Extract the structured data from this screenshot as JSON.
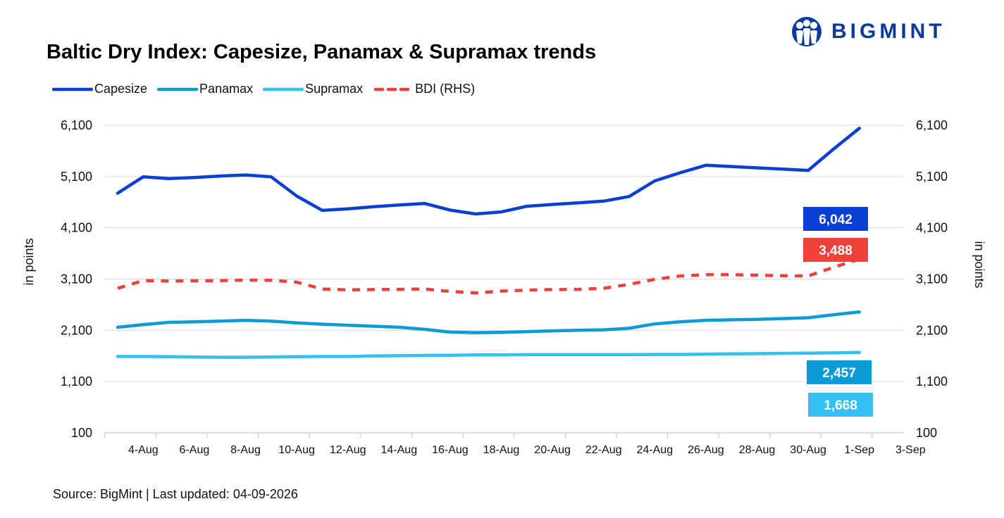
{
  "header": {
    "title": "Baltic Dry Index: Capesize, Panamax & Supramax trends",
    "logo_text": "BIGMINT"
  },
  "footer": {
    "source": "Source: BigMint | Last updated: 04-09-2026"
  },
  "colors": {
    "capesize": "#0a3fd4",
    "panamax": "#0d9bd8",
    "supramax": "#36bff2",
    "bdi": "#f0403a",
    "grid": "#d9d9d9",
    "logo": "#0b3a9c"
  },
  "chart_data": {
    "type": "line",
    "title": "Baltic Dry Index: Capesize, Panamax & Supramax trends",
    "ylabel_left": "in points",
    "ylabel_right": "in points",
    "ylim": [
      100,
      6100
    ],
    "y_ticks": [
      100,
      1100,
      2100,
      3100,
      4100,
      5100,
      6100
    ],
    "y_tick_labels": [
      "100",
      "1,100",
      "2,100",
      "3,100",
      "4,100",
      "5,100",
      "6,100"
    ],
    "x": [
      "3-Aug",
      "4-Aug",
      "5-Aug",
      "6-Aug",
      "7-Aug",
      "8-Aug",
      "9-Aug",
      "10-Aug",
      "11-Aug",
      "12-Aug",
      "13-Aug",
      "14-Aug",
      "15-Aug",
      "16-Aug",
      "17-Aug",
      "18-Aug",
      "19-Aug",
      "20-Aug",
      "21-Aug",
      "22-Aug",
      "23-Aug",
      "24-Aug",
      "25-Aug",
      "26-Aug",
      "27-Aug",
      "28-Aug",
      "29-Aug",
      "30-Aug",
      "31-Aug",
      "1-Sep",
      "2-Sep",
      "3-Sep"
    ],
    "x_tick_labels": [
      "4-Aug",
      "6-Aug",
      "8-Aug",
      "10-Aug",
      "12-Aug",
      "14-Aug",
      "16-Aug",
      "18-Aug",
      "20-Aug",
      "22-Aug",
      "24-Aug",
      "26-Aug",
      "28-Aug",
      "30-Aug",
      "1-Sep",
      "3-Sep"
    ],
    "grid": "horizontal",
    "legend_position": "top-left",
    "series": [
      {
        "name": "Capesize",
        "style": "solid",
        "points": [
          [
            0,
            4775
          ],
          [
            1,
            5095
          ],
          [
            2,
            5060
          ],
          [
            3,
            5080
          ],
          [
            4,
            5110
          ],
          [
            5,
            5130
          ],
          [
            6,
            5095
          ],
          [
            7,
            4720
          ],
          [
            8,
            4440
          ],
          [
            9,
            4470
          ],
          [
            10,
            4510
          ],
          [
            11,
            4545
          ],
          [
            12,
            4575
          ],
          [
            13,
            4445
          ],
          [
            14,
            4370
          ],
          [
            15,
            4410
          ],
          [
            16,
            4520
          ],
          [
            17,
            4555
          ],
          [
            18,
            4585
          ],
          [
            19,
            4620
          ],
          [
            20,
            4710
          ],
          [
            21,
            5015
          ],
          [
            22,
            5175
          ],
          [
            23,
            5320
          ],
          [
            24,
            5295
          ],
          [
            25,
            5270
          ],
          [
            26,
            5245
          ],
          [
            27,
            5220
          ],
          [
            28,
            5640
          ],
          [
            29,
            6042
          ]
        ]
      },
      {
        "name": "Panamax",
        "style": "solid",
        "points": [
          [
            0,
            2160
          ],
          [
            1,
            2210
          ],
          [
            2,
            2255
          ],
          [
            3,
            2265
          ],
          [
            4,
            2280
          ],
          [
            5,
            2295
          ],
          [
            6,
            2280
          ],
          [
            7,
            2245
          ],
          [
            8,
            2220
          ],
          [
            9,
            2200
          ],
          [
            10,
            2180
          ],
          [
            11,
            2160
          ],
          [
            12,
            2120
          ],
          [
            13,
            2065
          ],
          [
            14,
            2055
          ],
          [
            15,
            2060
          ],
          [
            16,
            2075
          ],
          [
            17,
            2090
          ],
          [
            18,
            2100
          ],
          [
            19,
            2110
          ],
          [
            20,
            2140
          ],
          [
            21,
            2225
          ],
          [
            22,
            2265
          ],
          [
            23,
            2295
          ],
          [
            24,
            2305
          ],
          [
            25,
            2315
          ],
          [
            26,
            2330
          ],
          [
            27,
            2345
          ],
          [
            28,
            2405
          ],
          [
            29,
            2457
          ]
        ]
      },
      {
        "name": "Supramax",
        "style": "solid",
        "points": [
          [
            0,
            1590
          ],
          [
            1,
            1590
          ],
          [
            2,
            1585
          ],
          [
            3,
            1580
          ],
          [
            4,
            1575
          ],
          [
            5,
            1575
          ],
          [
            6,
            1580
          ],
          [
            7,
            1585
          ],
          [
            8,
            1590
          ],
          [
            9,
            1590
          ],
          [
            10,
            1600
          ],
          [
            11,
            1605
          ],
          [
            12,
            1610
          ],
          [
            13,
            1615
          ],
          [
            14,
            1620
          ],
          [
            15,
            1620
          ],
          [
            16,
            1625
          ],
          [
            17,
            1625
          ],
          [
            18,
            1625
          ],
          [
            19,
            1625
          ],
          [
            20,
            1625
          ],
          [
            21,
            1630
          ],
          [
            22,
            1630
          ],
          [
            23,
            1635
          ],
          [
            24,
            1640
          ],
          [
            25,
            1645
          ],
          [
            26,
            1650
          ],
          [
            27,
            1655
          ],
          [
            28,
            1660
          ],
          [
            29,
            1668
          ]
        ]
      },
      {
        "name": "BDI (RHS)",
        "style": "dashed",
        "points": [
          [
            0,
            2920
          ],
          [
            1,
            3070
          ],
          [
            2,
            3060
          ],
          [
            3,
            3065
          ],
          [
            4,
            3070
          ],
          [
            5,
            3080
          ],
          [
            6,
            3075
          ],
          [
            7,
            3040
          ],
          [
            8,
            2905
          ],
          [
            9,
            2890
          ],
          [
            10,
            2895
          ],
          [
            11,
            2900
          ],
          [
            12,
            2905
          ],
          [
            13,
            2860
          ],
          [
            14,
            2830
          ],
          [
            15,
            2865
          ],
          [
            16,
            2885
          ],
          [
            17,
            2895
          ],
          [
            18,
            2900
          ],
          [
            19,
            2920
          ],
          [
            20,
            2995
          ],
          [
            21,
            3095
          ],
          [
            22,
            3160
          ],
          [
            23,
            3185
          ],
          [
            24,
            3185
          ],
          [
            25,
            3175
          ],
          [
            26,
            3165
          ],
          [
            27,
            3160
          ],
          [
            28,
            3330
          ],
          [
            29,
            3488
          ]
        ]
      }
    ],
    "callouts": [
      {
        "series": "Capesize",
        "label": "6,042"
      },
      {
        "series": "BDI (RHS)",
        "label": "3,488"
      },
      {
        "series": "Panamax",
        "label": "2,457"
      },
      {
        "series": "Supramax",
        "label": "1,668"
      }
    ]
  }
}
